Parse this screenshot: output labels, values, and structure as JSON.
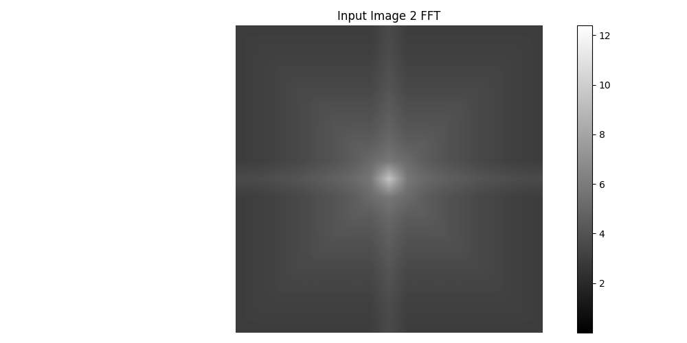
{
  "chart_data": {
    "type": "heatmap",
    "title": "Input Image 2 FFT",
    "color": "gray",
    "tick_labels": false,
    "cells": [
      [
        3.0,
        3.0,
        3.0,
        3.0,
        3.0,
        3.0,
        3.0,
        3.0,
        3.6,
        3.0,
        3.0,
        3.0,
        3.0,
        3.0,
        3.0,
        3.0,
        3.0
      ],
      [
        3.0,
        3.1,
        3.1,
        3.1,
        3.1,
        3.1,
        3.1,
        3.1,
        3.7,
        3.1,
        3.1,
        3.1,
        3.1,
        3.1,
        3.1,
        3.1,
        3.0
      ],
      [
        3.0,
        3.1,
        3.3,
        3.3,
        3.3,
        3.3,
        3.3,
        3.3,
        3.9,
        3.3,
        3.3,
        3.3,
        3.3,
        3.3,
        3.3,
        3.1,
        3.0
      ],
      [
        3.0,
        3.1,
        3.3,
        3.5,
        3.5,
        3.5,
        3.5,
        3.5,
        4.1,
        3.5,
        3.5,
        3.5,
        3.5,
        3.5,
        3.3,
        3.1,
        3.0
      ],
      [
        3.0,
        3.1,
        3.3,
        3.5,
        3.8,
        3.8,
        3.8,
        3.8,
        4.4,
        3.8,
        3.8,
        3.8,
        3.8,
        3.5,
        3.3,
        3.1,
        3.0
      ],
      [
        3.0,
        3.1,
        3.3,
        3.5,
        3.8,
        4.1,
        4.1,
        4.1,
        4.7,
        4.1,
        4.1,
        4.1,
        3.8,
        3.5,
        3.3,
        3.1,
        3.0
      ],
      [
        3.0,
        3.1,
        3.3,
        3.5,
        3.8,
        4.1,
        4.5,
        4.5,
        5.1,
        4.5,
        4.5,
        4.1,
        3.8,
        3.5,
        3.3,
        3.1,
        3.0
      ],
      [
        3.0,
        3.1,
        3.3,
        3.5,
        3.8,
        4.1,
        4.5,
        5.2,
        5.8,
        5.2,
        4.5,
        4.1,
        3.8,
        3.5,
        3.3,
        3.1,
        3.0
      ],
      [
        3.6,
        3.7,
        3.9,
        4.1,
        4.4,
        4.7,
        5.1,
        5.8,
        9.5,
        5.8,
        5.1,
        4.7,
        4.4,
        4.1,
        3.9,
        3.7,
        3.6
      ],
      [
        3.0,
        3.1,
        3.3,
        3.5,
        3.8,
        4.1,
        4.5,
        5.2,
        5.8,
        5.2,
        4.5,
        4.1,
        3.8,
        3.5,
        3.3,
        3.1,
        3.0
      ],
      [
        3.0,
        3.1,
        3.3,
        3.5,
        3.8,
        4.1,
        4.5,
        4.5,
        5.1,
        4.5,
        4.5,
        4.1,
        3.8,
        3.5,
        3.3,
        3.1,
        3.0
      ],
      [
        3.0,
        3.1,
        3.3,
        3.5,
        3.8,
        4.1,
        4.1,
        4.1,
        4.7,
        4.1,
        4.1,
        4.1,
        3.8,
        3.5,
        3.3,
        3.1,
        3.0
      ],
      [
        3.0,
        3.1,
        3.3,
        3.5,
        3.8,
        3.8,
        3.8,
        3.8,
        4.4,
        3.8,
        3.8,
        3.8,
        3.8,
        3.5,
        3.3,
        3.1,
        3.0
      ],
      [
        3.0,
        3.1,
        3.3,
        3.5,
        3.5,
        3.5,
        3.5,
        3.5,
        4.1,
        3.5,
        3.5,
        3.5,
        3.5,
        3.5,
        3.3,
        3.1,
        3.0
      ],
      [
        3.0,
        3.1,
        3.3,
        3.3,
        3.3,
        3.3,
        3.3,
        3.3,
        3.9,
        3.3,
        3.3,
        3.3,
        3.3,
        3.3,
        3.3,
        3.1,
        3.0
      ],
      [
        3.0,
        3.1,
        3.1,
        3.1,
        3.1,
        3.1,
        3.1,
        3.1,
        3.7,
        3.1,
        3.1,
        3.1,
        3.1,
        3.1,
        3.1,
        3.1,
        3.0
      ],
      [
        3.0,
        3.0,
        3.0,
        3.0,
        3.0,
        3.0,
        3.0,
        3.0,
        3.6,
        3.0,
        3.0,
        3.0,
        3.0,
        3.0,
        3.0,
        3.0,
        3.0
      ]
    ],
    "colorbar_range": [
      0,
      12.4
    ],
    "colorbar_ticks": [
      2,
      4,
      6,
      8,
      10,
      12
    ]
  }
}
